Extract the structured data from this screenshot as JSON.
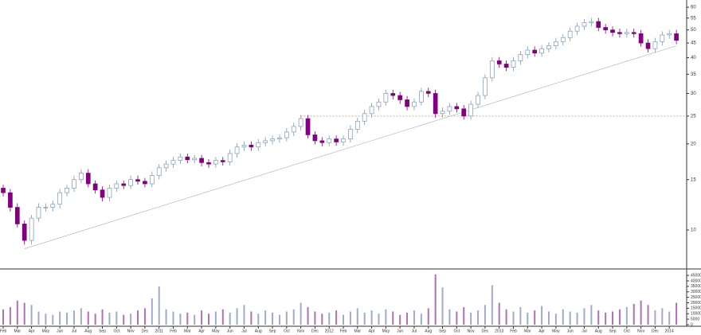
{
  "chart_data": {
    "type": "candlestick",
    "categories": [
      "Feb",
      null,
      "Mar",
      null,
      "Apr",
      null,
      "May",
      null,
      "Jun",
      null,
      "Jul",
      null,
      "Aug",
      null,
      "Sep",
      null,
      "Oct",
      null,
      "Nov",
      null,
      "Dec",
      null,
      "2011",
      null,
      "Feb",
      null,
      "Mar",
      null,
      "Apr",
      null,
      "May",
      null,
      "Jun",
      null,
      "Jul",
      null,
      "Aug",
      null,
      "Sep",
      null,
      "Oct",
      null,
      "Nov",
      null,
      "Dec",
      null,
      "2012",
      null,
      "Feb",
      null,
      "Mar",
      null,
      "Apr",
      null,
      "May",
      null,
      "Jun",
      null,
      "Jul",
      null,
      "Aug",
      null,
      "Sep",
      null,
      "Oct",
      null,
      "Nov",
      null,
      "Dec",
      null,
      "2013",
      null,
      "Feb",
      null,
      "Mar",
      null,
      "Apr",
      null,
      "May",
      null,
      "Jun",
      null,
      "Jul",
      null,
      "Aug",
      null,
      "Sep",
      null,
      "Oct",
      null,
      "Nov",
      null,
      "Dec",
      null,
      "2014",
      null
    ],
    "open": [
      14,
      13.5,
      12,
      10.5,
      9.2,
      11,
      12,
      12,
      12.3,
      13.5,
      14,
      15,
      15.8,
      14.5,
      13.8,
      13,
      14,
      14.5,
      14.3,
      15,
      14.8,
      14.5,
      15.5,
      16.5,
      17,
      17.5,
      18,
      17.6,
      17.8,
      17.2,
      17,
      17.5,
      17.3,
      18.5,
      19.5,
      19.8,
      19.5,
      20.2,
      20.5,
      20.8,
      21,
      22,
      23,
      24.5,
      21.5,
      20.5,
      20.2,
      20.8,
      20.3,
      20.8,
      22.5,
      24,
      25.5,
      27,
      28,
      30,
      29.5,
      28.5,
      27,
      28,
      30.5,
      30,
      25.5,
      26,
      27,
      26.5,
      25,
      27.5,
      29.5,
      34,
      39,
      38,
      37,
      39,
      41,
      42.5,
      41.5,
      43,
      44,
      45.5,
      47,
      49.5,
      51.5,
      53,
      53.5,
      51,
      50,
      49,
      48.5,
      49,
      48.5,
      45,
      43,
      45.5,
      48,
      48.5
    ],
    "high": [
      14.4,
      13.9,
      12.4,
      10.8,
      11.3,
      12.4,
      12.4,
      12.7,
      13.9,
      14.4,
      15.5,
      16.3,
      16.3,
      14.9,
      14.2,
      14.4,
      14.9,
      14.9,
      15.5,
      15.5,
      15.2,
      16,
      17,
      17.5,
      18,
      18.5,
      18.5,
      18.3,
      18.3,
      17.7,
      18,
      18,
      19.1,
      20.1,
      20.4,
      20.4,
      20.8,
      21.1,
      21.4,
      21.6,
      22.7,
      23.7,
      25.2,
      25.2,
      22.1,
      21.1,
      21.4,
      21.4,
      21.4,
      23.2,
      24.7,
      26.3,
      27.8,
      28.8,
      30.9,
      30.9,
      30.4,
      29.4,
      28.8,
      31.4,
      31.4,
      30.9,
      26.8,
      27.8,
      27.8,
      27.3,
      28.3,
      30.4,
      35,
      40.2,
      40.2,
      39.1,
      40.2,
      42.2,
      43.8,
      43.8,
      44.3,
      45.3,
      46.9,
      48.4,
      51,
      53,
      54.6,
      55.1,
      55.1,
      52.5,
      51.5,
      50.5,
      50.5,
      50.5,
      50,
      46.4,
      46.9,
      49.4,
      50,
      50
    ],
    "low": [
      13.1,
      11.6,
      10.2,
      8.9,
      8.9,
      10.7,
      11.6,
      11.6,
      11.9,
      13.1,
      13.6,
      14.6,
      14.1,
      13.4,
      12.6,
      12.6,
      13.6,
      13.9,
      13.9,
      14.4,
      14.1,
      14.1,
      15,
      16,
      16.5,
      17,
      17.1,
      17.1,
      16.7,
      16.5,
      16.5,
      16.8,
      16.8,
      17.9,
      18.9,
      18.9,
      18.9,
      19.6,
      19.9,
      20.2,
      20.4,
      21.3,
      22.3,
      20.9,
      19.9,
      19.6,
      19.6,
      19.7,
      19.7,
      20.2,
      21.8,
      23.3,
      24.7,
      26.2,
      27.2,
      28.6,
      27.6,
      26.2,
      26.2,
      27.2,
      29.1,
      24.7,
      24.7,
      25.2,
      25.7,
      24.3,
      24.3,
      26.7,
      28.6,
      33,
      36.9,
      35.9,
      35.9,
      37.8,
      39.8,
      40.3,
      40.3,
      41.7,
      42.7,
      44.1,
      45.6,
      48,
      50,
      51.4,
      49.5,
      48.5,
      47.5,
      47,
      47,
      47,
      43.7,
      41.7,
      41.7,
      44.1,
      46.6,
      44.6
    ],
    "close": [
      13.5,
      12,
      10.5,
      9.2,
      11,
      12,
      12,
      12.3,
      13.5,
      14,
      15,
      15.8,
      14.5,
      13.8,
      13,
      14,
      14.5,
      14.3,
      15,
      14.8,
      14.5,
      15.5,
      16.5,
      17,
      17.5,
      18,
      17.6,
      17.8,
      17.2,
      17,
      17.5,
      17.3,
      18.5,
      19.5,
      19.8,
      19.5,
      20.2,
      20.5,
      20.8,
      21,
      22,
      23,
      24.5,
      21.5,
      20.5,
      20.2,
      20.8,
      20.3,
      20.8,
      22.5,
      24,
      25.5,
      27,
      28,
      30,
      29.5,
      28.5,
      27,
      28,
      30.5,
      30,
      25.5,
      26,
      27,
      26.5,
      25,
      27.5,
      29.5,
      34,
      39,
      38,
      37,
      39,
      41,
      42.5,
      41.5,
      43,
      44,
      45.5,
      47,
      49.5,
      51.5,
      53,
      53.5,
      51,
      50,
      49,
      48.5,
      49,
      48.5,
      45,
      43,
      45.5,
      48,
      48.5,
      46
    ],
    "volume": [
      14000,
      16000,
      22000,
      20000,
      18000,
      12000,
      10000,
      9000,
      12000,
      11000,
      13000,
      15000,
      12000,
      10000,
      14000,
      11000,
      12000,
      9000,
      10000,
      13000,
      15000,
      24000,
      35000,
      14000,
      12000,
      10000,
      11000,
      9000,
      13000,
      10000,
      12000,
      14000,
      11000,
      15000,
      18000,
      12000,
      10000,
      13000,
      11000,
      9000,
      12000,
      14000,
      20000,
      16000,
      12000,
      10000,
      11000,
      13000,
      9000,
      12000,
      15000,
      11000,
      13000,
      10000,
      14000,
      12000,
      9000,
      11000,
      13000,
      10000,
      15000,
      46000,
      34000,
      14000,
      12000,
      16000,
      11000,
      13000,
      18000,
      36000,
      20000,
      14000,
      12000,
      16000,
      11000,
      13000,
      17000,
      12000,
      10000,
      14000,
      12000,
      11000,
      15000,
      18000,
      13000,
      11000,
      12000,
      14000,
      16000,
      19000,
      22000,
      18000,
      13000,
      15000,
      12000,
      20000
    ],
    "log": true,
    "ylim": [
      7.5,
      62
    ],
    "yticks": [
      10,
      15,
      20,
      25,
      30,
      35,
      40,
      45,
      50,
      55,
      60
    ],
    "vlim": [
      0,
      48000
    ],
    "vticks": [
      0,
      5000,
      10000,
      15000,
      20000,
      25000,
      30000,
      35000,
      40000,
      45000
    ],
    "up_color": "#7c98b4",
    "down_color": "#800080",
    "trendline": {
      "from": [
        3,
        8.6
      ],
      "to": [
        95,
        44
      ],
      "color": "#b8b8c8"
    },
    "level": {
      "value": 25,
      "from": 42,
      "color": "#f08040"
    }
  }
}
